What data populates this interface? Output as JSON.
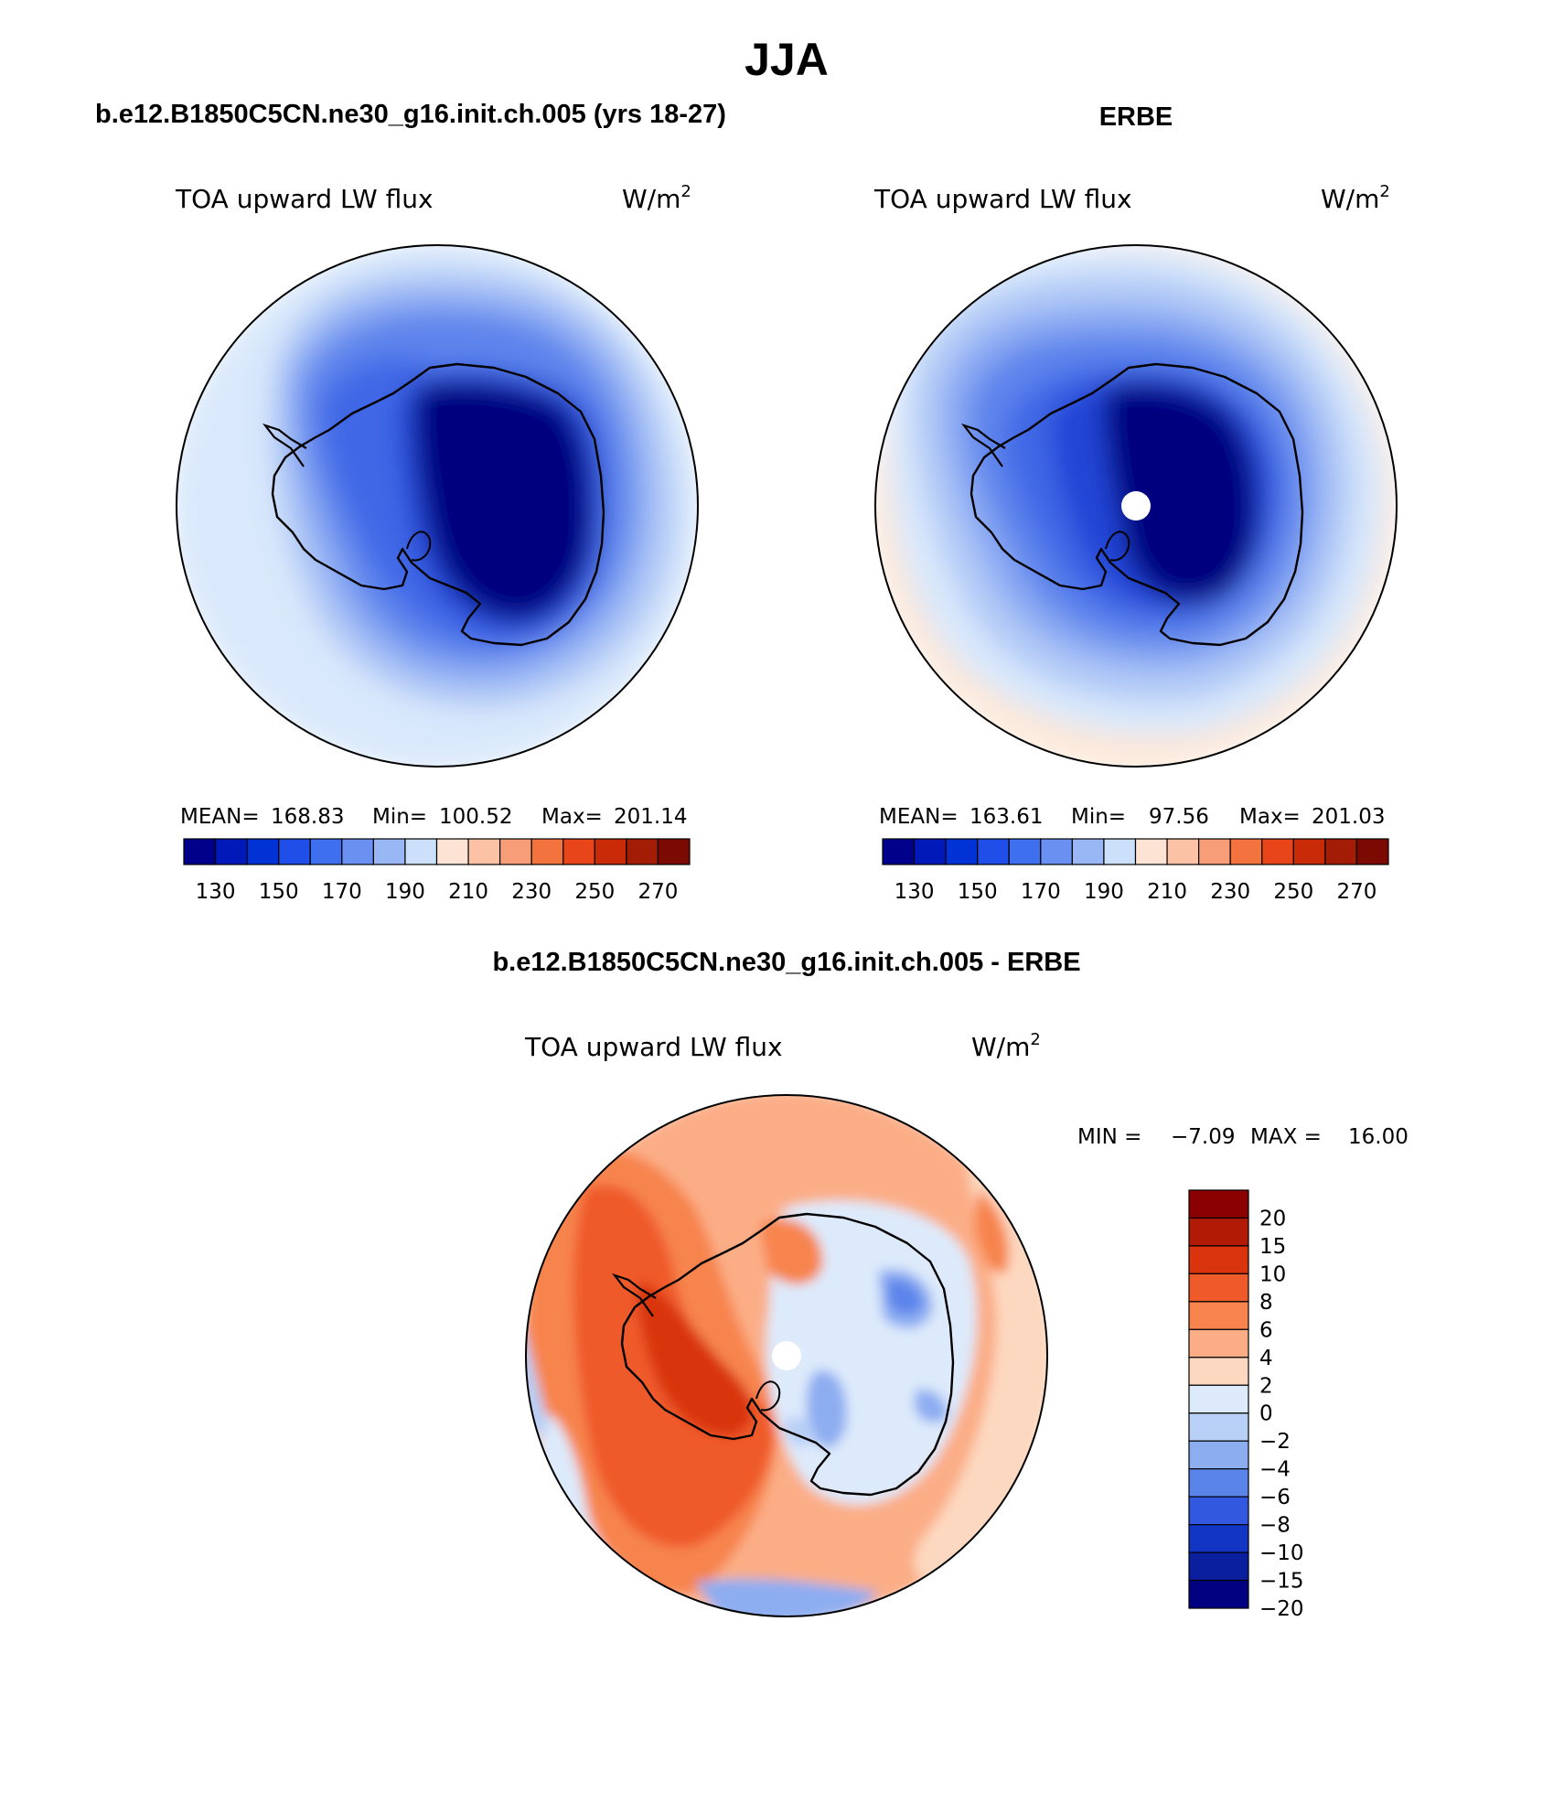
{
  "main_title": "JJA",
  "panels": [
    {
      "id": "model",
      "case_title": "b.e12.B1850C5CN.ne30_g16.init.ch.005 (yrs 18-27)",
      "variable": "TOA upward LW flux",
      "units_base": "W/m",
      "units_exp": "2",
      "stats": {
        "mean_label": "MEAN=",
        "mean": "168.83",
        "min_label": "Min=",
        "min": "100.52",
        "max_label": "Max=",
        "max": "201.14"
      },
      "colorbar": {
        "colors": [
          "#00008b",
          "#0019b8",
          "#0032d5",
          "#1f4fe8",
          "#3d6fef",
          "#6a91f2",
          "#99b6f5",
          "#cde0fb",
          "#fde3d3",
          "#fbc2a6",
          "#f79d78",
          "#f3733f",
          "#e8461a",
          "#c92a08",
          "#a31c05",
          "#7b0a02"
        ],
        "labels": [
          "130",
          "150",
          "170",
          "190",
          "210",
          "230",
          "250",
          "270"
        ]
      },
      "map_colors": [
        "#d9e8fb",
        "#b3cbf7",
        "#8aa9f3",
        "#5d84ec",
        "#3f68e6",
        "#2144d6",
        "#0015a8",
        "#00007e"
      ]
    },
    {
      "id": "obs",
      "case_title": "ERBE",
      "variable": "TOA upward LW flux",
      "units_base": "W/m",
      "units_exp": "2",
      "stats": {
        "mean_label": "MEAN=",
        "mean": "163.61",
        "min_label": "Min=",
        "min": "97.56",
        "max_label": "Max=",
        "max": "201.03"
      },
      "colorbar": {
        "colors": [
          "#00008b",
          "#0019b8",
          "#0032d5",
          "#1f4fe8",
          "#3d6fef",
          "#6a91f2",
          "#99b6f5",
          "#cde0fb",
          "#fde3d3",
          "#fbc2a6",
          "#f79d78",
          "#f3733f",
          "#e8461a",
          "#c92a08",
          "#a31c05",
          "#7b0a02"
        ],
        "labels": [
          "130",
          "150",
          "170",
          "190",
          "210",
          "230",
          "250",
          "270"
        ]
      },
      "map_colors": [
        "#fde8d8",
        "#d9e8fb",
        "#b3cbf7",
        "#8aa9f3",
        "#5d84ec",
        "#3f68e6",
        "#2144d6",
        "#00007e"
      ]
    },
    {
      "id": "diff",
      "case_title": "b.e12.B1850C5CN.ne30_g16.init.ch.005 - ERBE",
      "variable": "TOA upward LW flux",
      "units_base": "W/m",
      "units_exp": "2",
      "stats": {
        "min_label": "MIN =",
        "min": "−7.09",
        "max_label": "MAX =",
        "max": "16.00"
      },
      "colorbar": {
        "colors": [
          "#8b0000",
          "#b11a05",
          "#d9340e",
          "#ef5a2a",
          "#f7844e",
          "#fbad86",
          "#fdd8c0",
          "#ddeafb",
          "#b8cff6",
          "#8dadf1",
          "#5b84ea",
          "#3358e0",
          "#1335c4",
          "#0a1f9e",
          "#000080"
        ],
        "labels": [
          "20",
          "15",
          "10",
          "8",
          "6",
          "4",
          "2",
          "0",
          "−2",
          "−4",
          "−6",
          "−8",
          "−10",
          "−15",
          "−20"
        ]
      },
      "map_colors": [
        "#fbad86",
        "#f7844e",
        "#ef5a2a",
        "#d9340e",
        "#fdd8c0",
        "#ddeafb",
        "#8dadf1",
        "#3358e0"
      ]
    }
  ]
}
